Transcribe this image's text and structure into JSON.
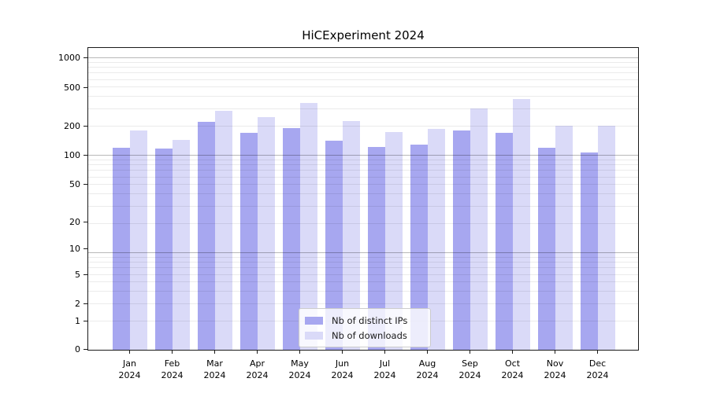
{
  "chart_data": {
    "type": "bar",
    "title": "HiCExperiment 2024",
    "categories": [
      "Jan 2024",
      "Feb 2024",
      "Mar 2024",
      "Apr 2024",
      "May 2024",
      "Jun 2024",
      "Jul 2024",
      "Aug 2024",
      "Sep 2024",
      "Oct 2024",
      "Nov 2024",
      "Dec 2024"
    ],
    "series": [
      {
        "name": "Nb of distinct IPs",
        "color": "#a7a7f0",
        "values": [
          120,
          118,
          220,
          171,
          191,
          141,
          122,
          128,
          182,
          170,
          120,
          107
        ]
      },
      {
        "name": "Nb of downloads",
        "color": "#dadaf8",
        "values": [
          182,
          143,
          288,
          246,
          347,
          224,
          173,
          186,
          306,
          380,
          200,
          203
        ]
      }
    ],
    "y_scale": "log10(1+x)",
    "y_ticks": [
      0,
      1,
      2,
      5,
      10,
      20,
      50,
      100,
      200,
      500,
      1000
    ],
    "ylim": [
      0,
      1350
    ],
    "xlabel": "",
    "ylabel": "",
    "grid": "horizontal",
    "legend_position": "lower center"
  }
}
